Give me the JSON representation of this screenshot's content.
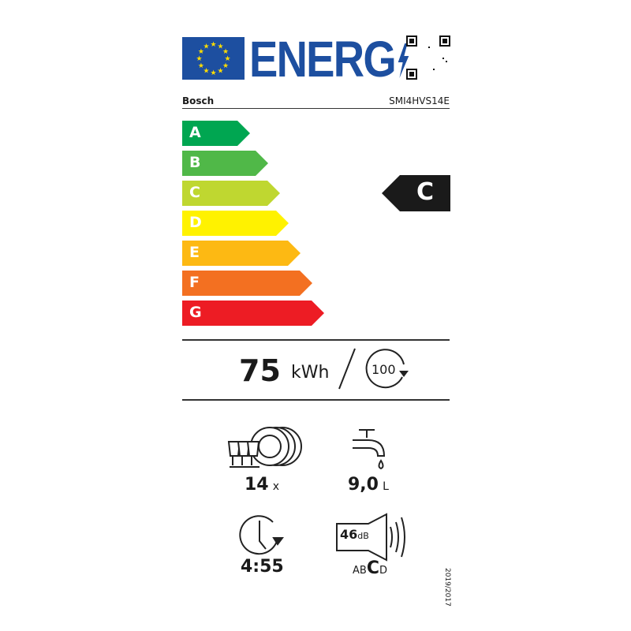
{
  "header": {
    "logo_text": "ENERG",
    "brand": "Bosch",
    "model": "SMI4HVS14E"
  },
  "scale": {
    "classes": [
      {
        "letter": "A",
        "color": "#00a651"
      },
      {
        "letter": "B",
        "color": "#50b848"
      },
      {
        "letter": "C",
        "color": "#bfd730"
      },
      {
        "letter": "D",
        "color": "#fff200"
      },
      {
        "letter": "E",
        "color": "#fdb913"
      },
      {
        "letter": "F",
        "color": "#f37021"
      },
      {
        "letter": "G",
        "color": "#ed1c24"
      }
    ],
    "rating": "C",
    "rating_color": "#1a1a1a"
  },
  "energy": {
    "value": "75",
    "unit": "kWh",
    "cycles": "100"
  },
  "specs": {
    "place_settings": {
      "value": "14",
      "unit": "x"
    },
    "water": {
      "value": "9,0",
      "unit": "L"
    },
    "duration": {
      "value": "4:55"
    },
    "noise": {
      "value": "46",
      "unit": "dB",
      "classes_pre": "AB",
      "class": "C",
      "classes_post": "D"
    }
  },
  "regulation": "2019/2017"
}
